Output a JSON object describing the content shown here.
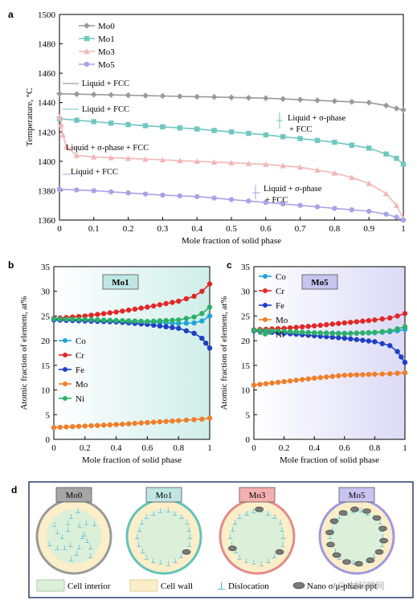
{
  "chart_data": [
    {
      "panel": "a",
      "type": "line",
      "xlabel": "Mole fraction of solid phase",
      "ylabel": "Temperature, °C",
      "xlim": [
        0,
        1
      ],
      "ylim": [
        1360,
        1500
      ],
      "xticks": [
        "0",
        "0.1",
        "0.2",
        "0.3",
        "0.4",
        "0.5",
        "0.6",
        "0.7",
        "0.8",
        "0.9",
        "1"
      ],
      "yticks": [
        "1360",
        "1380",
        "1400",
        "1420",
        "1440",
        "1460",
        "1480",
        "1500"
      ],
      "legend": {
        "placement": "top-left"
      },
      "series": [
        {
          "name": "Mo0",
          "color": "#9a9a9a",
          "marker": "diamond",
          "x": [
            0,
            0.1,
            0.2,
            0.3,
            0.4,
            0.5,
            0.6,
            0.7,
            0.8,
            0.85,
            0.9,
            0.95,
            0.98,
            1.0
          ],
          "y": [
            1446,
            1445.5,
            1445,
            1444.5,
            1444,
            1443.5,
            1443,
            1442,
            1441,
            1440.5,
            1440,
            1438,
            1436,
            1435
          ]
        },
        {
          "name": "Mo1",
          "color": "#6fc7c0",
          "marker": "square",
          "x": [
            0,
            0.1,
            0.2,
            0.3,
            0.4,
            0.5,
            0.6,
            0.7,
            0.8,
            0.85,
            0.9,
            0.95,
            0.98,
            1.0
          ],
          "y": [
            1429,
            1427,
            1425,
            1423.5,
            1422,
            1420,
            1418,
            1415.5,
            1413,
            1411,
            1409,
            1405,
            1402,
            1398
          ]
        },
        {
          "name": "Mo3",
          "color": "#f3b6b6",
          "marker": "triangle",
          "x": [
            0,
            0.005,
            0.01,
            0.02,
            0.05,
            0.1,
            0.2,
            0.3,
            0.4,
            0.5,
            0.6,
            0.7,
            0.8,
            0.85,
            0.9,
            0.95,
            0.98,
            1.0
          ],
          "y": [
            1430,
            1425,
            1418,
            1410,
            1404,
            1403,
            1402,
            1401,
            1400,
            1399,
            1398,
            1396,
            1392,
            1389,
            1385,
            1378,
            1370,
            1361
          ]
        },
        {
          "name": "Mo5",
          "color": "#a9a3e6",
          "marker": "circle",
          "x": [
            0,
            0.1,
            0.2,
            0.3,
            0.4,
            0.5,
            0.6,
            0.7,
            0.8,
            0.85,
            0.9,
            0.95,
            0.98,
            1.0
          ],
          "y": [
            1381,
            1380,
            1378.5,
            1377,
            1376,
            1374,
            1372,
            1370,
            1368,
            1367,
            1366,
            1364,
            1362,
            1360
          ]
        }
      ],
      "annotations": [
        {
          "text": "Liquid + FCC",
          "x": 0.1,
          "y": 1446
        },
        {
          "text": "Liquid + FCC",
          "x": 0.1,
          "y": 1435
        },
        {
          "text": "Liquid + σ-phase",
          "x": 0.77,
          "y": 1425
        },
        {
          "text": "+ FCC",
          "x": 0.74,
          "y": 1419
        },
        {
          "text": "Liquid + σ-phase + FCC",
          "x": 0.23,
          "y": 1410
        },
        {
          "text": "Liquid + FCC",
          "x": 0.09,
          "y": 1391
        },
        {
          "text": "Liquid + σ-phase",
          "x": 0.73,
          "y": 1378
        },
        {
          "text": "+ FCC",
          "x": 0.7,
          "y": 1372
        }
      ]
    },
    {
      "panel": "b",
      "type": "line",
      "title": "Mo1",
      "xlabel": "Mole fraction of solid phase",
      "ylabel": "Atomic fraction of element, at%",
      "xlim": [
        0,
        1
      ],
      "ylim": [
        0,
        35
      ],
      "xticks": [
        "0",
        "0.2",
        "0.4",
        "0.6",
        "0.8",
        "1"
      ],
      "yticks": [
        "0",
        "5",
        "10",
        "15",
        "20",
        "25",
        "30",
        "35"
      ],
      "series": [
        {
          "name": "Co",
          "color": "#1ea5d8",
          "x": [
            0,
            0.2,
            0.4,
            0.6,
            0.8,
            0.9,
            0.95,
            1.0
          ],
          "y": [
            24.3,
            24.2,
            24.0,
            23.8,
            23.5,
            23.6,
            24.0,
            25.0
          ]
        },
        {
          "name": "Cr",
          "color": "#e02828",
          "x": [
            0,
            0.2,
            0.4,
            0.6,
            0.8,
            0.9,
            0.95,
            1.0
          ],
          "y": [
            24.5,
            25.0,
            25.8,
            26.8,
            28.0,
            29.0,
            30.0,
            31.5
          ]
        },
        {
          "name": "Fe",
          "color": "#1f3fc4",
          "x": [
            0,
            0.2,
            0.4,
            0.6,
            0.8,
            0.9,
            0.95,
            1.0
          ],
          "y": [
            24.2,
            24.0,
            23.8,
            23.3,
            22.5,
            21.5,
            20.5,
            18.5
          ]
        },
        {
          "name": "Mo",
          "color": "#ef7f2b",
          "x": [
            0,
            0.2,
            0.4,
            0.6,
            0.8,
            0.9,
            0.95,
            1.0
          ],
          "y": [
            2.4,
            2.7,
            3.0,
            3.4,
            3.8,
            4.0,
            4.1,
            4.3
          ]
        },
        {
          "name": "Ni",
          "color": "#2eb06a",
          "x": [
            0,
            0.2,
            0.4,
            0.6,
            0.8,
            0.9,
            0.95,
            1.0
          ],
          "y": [
            24.4,
            24.3,
            24.1,
            23.9,
            24.2,
            24.8,
            25.5,
            26.8
          ]
        }
      ]
    },
    {
      "panel": "c",
      "type": "line",
      "title": "Mo5",
      "xlabel": "Mole fraction of solid phase",
      "ylabel": "Atomic fraction of element, at%",
      "xlim": [
        0,
        1
      ],
      "ylim": [
        0,
        35
      ],
      "xticks": [
        "0",
        "0.2",
        "0.4",
        "0.6",
        "0.8",
        "1"
      ],
      "yticks": [
        "0",
        "5",
        "10",
        "15",
        "20",
        "25",
        "30",
        "35"
      ],
      "series": [
        {
          "name": "Co",
          "color": "#1ea5d8",
          "x": [
            0,
            0.2,
            0.4,
            0.6,
            0.8,
            0.9,
            0.95,
            1.0
          ],
          "y": [
            22.0,
            21.8,
            21.6,
            21.5,
            21.6,
            21.8,
            22.0,
            22.3
          ]
        },
        {
          "name": "Cr",
          "color": "#e02828",
          "x": [
            0,
            0.2,
            0.4,
            0.6,
            0.8,
            0.9,
            0.95,
            1.0
          ],
          "y": [
            22.2,
            22.5,
            23.0,
            23.6,
            24.2,
            24.6,
            25.0,
            25.5
          ]
        },
        {
          "name": "Fe",
          "color": "#1f3fc4",
          "x": [
            0,
            0.2,
            0.4,
            0.6,
            0.8,
            0.9,
            0.95,
            1.0
          ],
          "y": [
            22.0,
            21.5,
            21.0,
            20.5,
            19.8,
            19.0,
            17.8,
            15.6
          ]
        },
        {
          "name": "Mo",
          "color": "#ef7f2b",
          "x": [
            0,
            0.2,
            0.4,
            0.6,
            0.8,
            0.9,
            0.95,
            1.0
          ],
          "y": [
            11.0,
            11.7,
            12.4,
            13.0,
            13.2,
            13.3,
            13.4,
            13.5
          ]
        },
        {
          "name": "Ni",
          "color": "#2eb06a",
          "x": [
            0,
            0.2,
            0.4,
            0.6,
            0.8,
            0.9,
            0.95,
            1.0
          ],
          "y": [
            22.1,
            21.9,
            21.6,
            21.4,
            21.7,
            22.0,
            22.4,
            22.8
          ]
        }
      ]
    }
  ],
  "figure": {
    "panel_labels": [
      "a",
      "b",
      "c",
      "d"
    ],
    "schematic": {
      "cells": [
        {
          "label": "Mo0",
          "label_bg": "#a6a6a6",
          "ring": "#9a9a9a"
        },
        {
          "label": "Mo1",
          "label_bg": "#bfe6e2",
          "ring": "#62c3bb"
        },
        {
          "label": "Mo3",
          "label_bg": "#f4b0b0",
          "ring": "#e38b8b"
        },
        {
          "label": "Mo5",
          "label_bg": "#c9c3f0",
          "ring": "#9f98e0"
        }
      ],
      "legend": {
        "cell_interior": "Cell interior",
        "cell_wall": "Cell wall",
        "dislocation": "Dislocation",
        "dislocation_symbol": "⊥",
        "nano": "Nano σ/μ-phase ppt"
      }
    },
    "watermark": "@ 材料学网"
  }
}
